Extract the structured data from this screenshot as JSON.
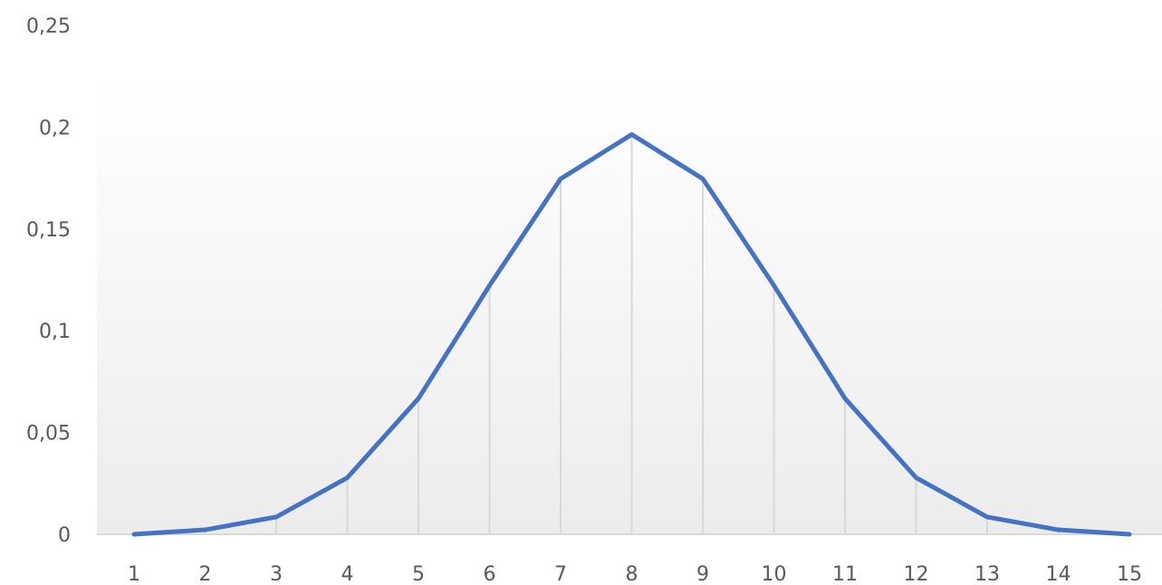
{
  "chart_data": {
    "type": "line",
    "title": "",
    "xlabel": "",
    "ylabel": "",
    "categories": [
      "1",
      "2",
      "3",
      "4",
      "5",
      "6",
      "7",
      "8",
      "9",
      "10",
      "11",
      "12",
      "13",
      "14",
      "15"
    ],
    "series": [
      {
        "values": [
          0.0,
          0.0022,
          0.0085,
          0.0278,
          0.0667,
          0.1222,
          0.1746,
          0.1964,
          0.1746,
          0.1222,
          0.0667,
          0.0278,
          0.0085,
          0.0022,
          0.0
        ],
        "color": "#4472c4"
      }
    ],
    "ylim": [
      0,
      0.25
    ],
    "y_ticks": [
      "0",
      "0,05",
      "0,1",
      "0,15",
      "0,2",
      "0,25"
    ],
    "grid": false,
    "drop_lines": true,
    "legend": "none",
    "plot_area_background": "gradient-light-gray"
  }
}
